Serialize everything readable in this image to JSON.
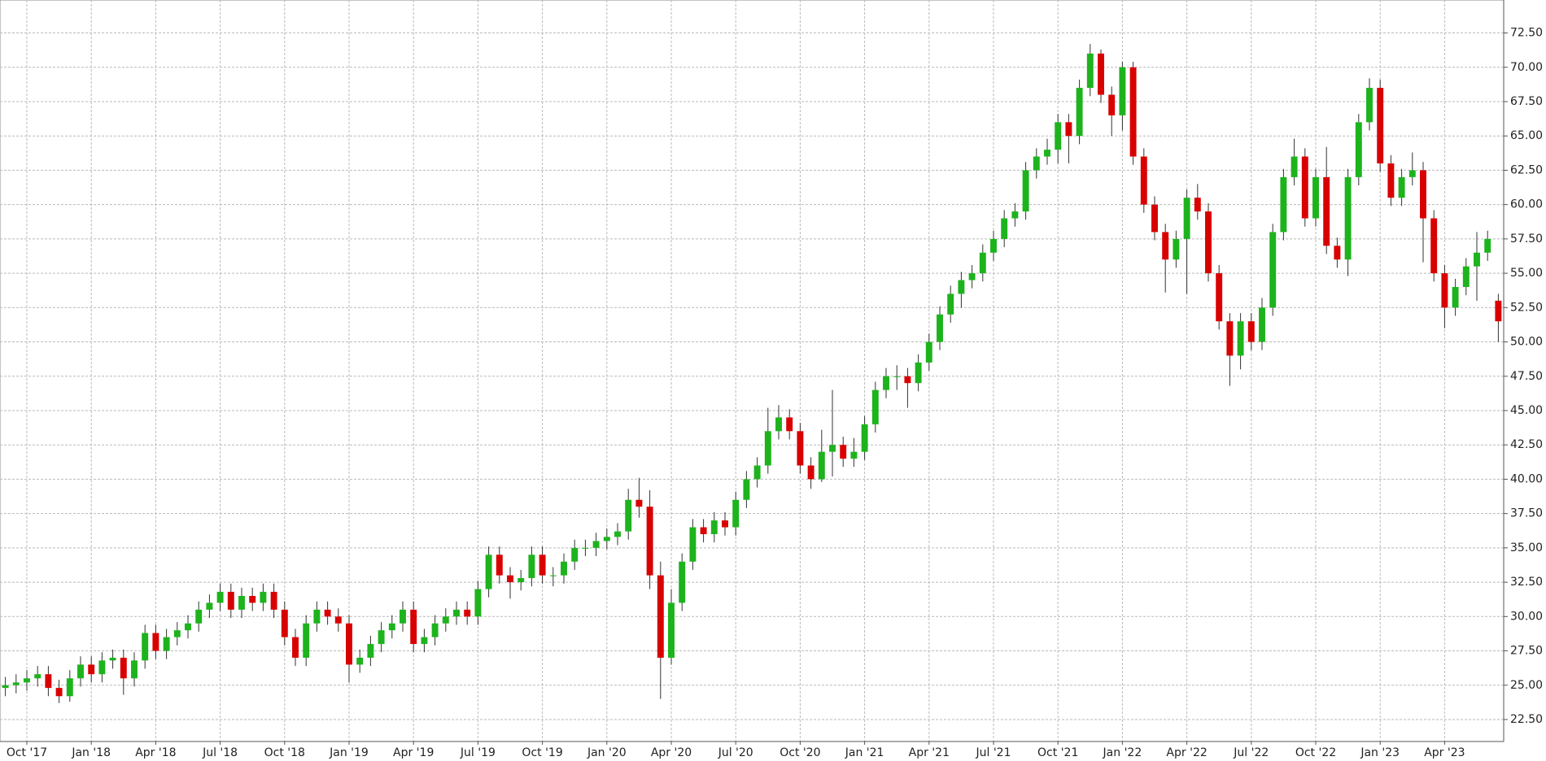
{
  "chart_data": {
    "type": "candlestick",
    "categories": [
      null,
      null,
      "Oct '17",
      null,
      null,
      null,
      null,
      null,
      "Jan '18",
      null,
      null,
      null,
      null,
      null,
      "Apr '18",
      null,
      null,
      null,
      null,
      null,
      "Jul '18",
      null,
      null,
      null,
      null,
      null,
      "Oct '18",
      null,
      null,
      null,
      null,
      null,
      "Jan '19",
      null,
      null,
      null,
      null,
      null,
      "Apr '19",
      null,
      null,
      null,
      null,
      null,
      "Jul '19",
      null,
      null,
      null,
      null,
      null,
      "Oct '19",
      null,
      null,
      null,
      null,
      null,
      "Jan '20",
      null,
      null,
      null,
      null,
      null,
      "Apr '20",
      null,
      null,
      null,
      null,
      null,
      "Jul '20",
      null,
      null,
      null,
      null,
      null,
      "Oct '20",
      null,
      null,
      null,
      null,
      null,
      "Jan '21",
      null,
      null,
      null,
      null,
      null,
      "Apr '21",
      null,
      null,
      null,
      null,
      null,
      "Jul '21",
      null,
      null,
      null,
      null,
      null,
      "Oct '21",
      null,
      null,
      null,
      null,
      null,
      "Jan '22",
      null,
      null,
      null,
      null,
      null,
      "Apr '22",
      null,
      null,
      null,
      null,
      null,
      "Jul '22",
      null,
      null,
      null,
      null,
      null,
      "Oct '22",
      null,
      null,
      null,
      null,
      null,
      "Jan '23",
      null,
      null,
      null,
      null,
      null,
      "Apr '23",
      null,
      null,
      null,
      null,
      null
    ],
    "open": [
      24.8,
      25.0,
      25.2,
      25.5,
      25.8,
      24.8,
      24.2,
      25.5,
      26.5,
      25.8,
      26.8,
      27.0,
      25.5,
      26.8,
      28.8,
      27.5,
      28.5,
      29.0,
      29.5,
      30.5,
      31.0,
      31.8,
      30.5,
      31.5,
      31.0,
      31.8,
      30.5,
      28.5,
      27.0,
      29.5,
      30.5,
      30.0,
      29.5,
      26.5,
      27.0,
      28.0,
      29.0,
      29.5,
      30.5,
      28.0,
      28.5,
      29.5,
      30.0,
      30.5,
      30.0,
      32.0,
      34.5,
      33.0,
      32.5,
      32.8,
      34.5,
      33.0,
      33.0,
      34.0,
      35.0,
      35.0,
      35.5,
      35.8,
      36.2,
      38.5,
      38.0,
      33.0,
      27.0,
      31.0,
      34.0,
      36.5,
      36.0,
      37.0,
      36.5,
      38.5,
      40.0,
      41.0,
      43.5,
      44.5,
      43.5,
      41.0,
      40.0,
      42.0,
      42.5,
      41.5,
      42.0,
      44.0,
      46.5,
      47.5,
      47.5,
      47.0,
      48.5,
      50.0,
      52.0,
      53.5,
      54.5,
      55.0,
      56.5,
      57.5,
      59.0,
      59.5,
      62.5,
      63.5,
      64.0,
      66.0,
      65.0,
      68.5,
      71.0,
      68.0,
      66.5,
      70.0,
      63.5,
      60.0,
      58.0,
      56.0,
      57.5,
      60.5,
      59.5,
      55.0,
      51.5,
      49.0,
      51.5,
      50.0,
      52.5,
      58.0,
      62.0,
      63.5,
      59.0,
      62.0,
      57.0,
      56.0,
      62.0,
      66.0,
      68.5,
      63.0,
      60.5,
      62.0,
      62.5,
      59.0,
      55.0,
      52.5,
      54.0,
      55.5,
      56.5,
      53.0
    ],
    "high": [
      25.6,
      25.8,
      26.1,
      26.4,
      26.4,
      25.4,
      26.1,
      27.1,
      27.1,
      27.4,
      27.6,
      27.6,
      27.4,
      29.4,
      29.4,
      29.1,
      29.6,
      30.1,
      31.1,
      31.6,
      32.4,
      32.4,
      32.1,
      32.1,
      32.4,
      32.4,
      31.1,
      29.1,
      30.1,
      31.1,
      31.1,
      30.6,
      30.1,
      27.6,
      28.6,
      29.6,
      30.1,
      31.1,
      31.1,
      29.1,
      30.1,
      30.6,
      31.1,
      31.1,
      32.6,
      35.1,
      35.1,
      33.6,
      33.4,
      35.1,
      35.1,
      33.6,
      34.6,
      35.6,
      35.6,
      36.1,
      36.4,
      36.8,
      39.3,
      40.1,
      39.2,
      34.0,
      32.0,
      34.6,
      37.1,
      37.1,
      37.6,
      37.6,
      39.1,
      40.6,
      41.6,
      45.2,
      45.4,
      45.1,
      44.1,
      41.6,
      43.6,
      46.5,
      43.1,
      43.0,
      44.6,
      47.1,
      48.1,
      48.3,
      48.1,
      49.1,
      50.6,
      52.6,
      54.1,
      55.1,
      55.6,
      57.1,
      58.1,
      59.6,
      60.1,
      63.1,
      64.1,
      64.8,
      66.6,
      66.6,
      69.1,
      71.7,
      71.3,
      68.6,
      70.4,
      70.4,
      64.1,
      60.6,
      58.6,
      58.1,
      61.1,
      61.5,
      60.1,
      55.6,
      52.1,
      52.1,
      52.1,
      53.2,
      58.6,
      62.6,
      64.8,
      64.1,
      62.6,
      64.2,
      57.6,
      62.6,
      66.6,
      69.2,
      69.1,
      63.6,
      62.6,
      63.8,
      63.1,
      59.6,
      55.6,
      54.6,
      56.1,
      58.0,
      58.1,
      53.5
    ],
    "low": [
      24.2,
      24.4,
      24.6,
      24.9,
      24.2,
      23.7,
      23.8,
      24.9,
      25.2,
      25.2,
      26.2,
      24.3,
      24.9,
      26.2,
      26.9,
      26.9,
      27.9,
      28.4,
      28.9,
      29.9,
      30.4,
      29.9,
      29.9,
      30.4,
      30.4,
      29.9,
      27.9,
      26.4,
      26.4,
      28.9,
      29.4,
      28.9,
      25.2,
      25.9,
      26.4,
      27.4,
      28.4,
      28.9,
      27.4,
      27.4,
      27.9,
      28.9,
      29.4,
      29.4,
      29.4,
      31.4,
      32.4,
      31.3,
      31.9,
      32.2,
      32.4,
      32.2,
      32.4,
      33.4,
      34.4,
      34.4,
      34.9,
      35.2,
      35.6,
      37.2,
      32.0,
      24.0,
      26.5,
      30.4,
      33.4,
      35.4,
      35.4,
      35.9,
      35.9,
      37.9,
      39.4,
      40.4,
      42.9,
      42.9,
      40.4,
      39.3,
      39.8,
      40.2,
      40.9,
      40.9,
      41.4,
      43.4,
      45.9,
      46.5,
      45.2,
      46.4,
      47.9,
      49.4,
      51.4,
      52.5,
      53.9,
      54.4,
      55.9,
      56.9,
      58.4,
      58.9,
      61.9,
      62.9,
      63.0,
      63.0,
      64.4,
      67.9,
      67.4,
      65.0,
      65.4,
      62.9,
      59.4,
      57.4,
      53.6,
      55.4,
      53.5,
      58.9,
      54.4,
      50.9,
      46.8,
      48.0,
      49.4,
      49.4,
      51.9,
      57.4,
      61.4,
      58.4,
      58.4,
      56.4,
      55.4,
      54.8,
      61.4,
      65.4,
      62.4,
      59.9,
      59.9,
      61.4,
      55.8,
      54.4,
      51.0,
      51.9,
      53.4,
      53.0,
      55.9,
      50.0
    ],
    "close": [
      25.0,
      25.2,
      25.5,
      25.8,
      24.8,
      24.2,
      25.5,
      26.5,
      25.8,
      26.8,
      27.0,
      25.5,
      26.8,
      28.8,
      27.5,
      28.5,
      29.0,
      29.5,
      30.5,
      31.0,
      31.8,
      30.5,
      31.5,
      31.0,
      31.8,
      30.5,
      28.5,
      27.0,
      29.5,
      30.5,
      30.0,
      29.5,
      26.5,
      27.0,
      28.0,
      29.0,
      29.5,
      30.5,
      28.0,
      28.5,
      29.5,
      30.0,
      30.5,
      30.0,
      32.0,
      34.5,
      33.0,
      32.5,
      32.8,
      34.5,
      33.0,
      33.0,
      34.0,
      35.0,
      35.0,
      35.5,
      35.8,
      36.2,
      38.5,
      38.0,
      33.0,
      27.0,
      31.0,
      34.0,
      36.5,
      36.0,
      37.0,
      36.5,
      38.5,
      40.0,
      41.0,
      43.5,
      44.5,
      43.5,
      41.0,
      40.0,
      42.0,
      42.5,
      41.5,
      42.0,
      44.0,
      46.5,
      47.5,
      47.5,
      47.0,
      48.5,
      50.0,
      52.0,
      53.5,
      54.5,
      55.0,
      56.5,
      57.5,
      59.0,
      59.5,
      62.5,
      63.5,
      64.0,
      66.0,
      65.0,
      68.5,
      71.0,
      68.0,
      66.5,
      70.0,
      63.5,
      60.0,
      58.0,
      56.0,
      57.5,
      60.5,
      59.5,
      55.0,
      51.5,
      49.0,
      51.5,
      50.0,
      52.5,
      58.0,
      62.0,
      63.5,
      59.0,
      62.0,
      57.0,
      56.0,
      62.0,
      66.0,
      68.5,
      63.0,
      60.5,
      62.0,
      62.5,
      59.0,
      55.0,
      52.5,
      54.0,
      55.5,
      56.5,
      57.5,
      51.5
    ],
    "up_color": "#1db31d",
    "down_color": "#d90000",
    "ylim": [
      20.9,
      74.9
    ],
    "yticks": [
      {
        "value": 22.5,
        "label": "22.50"
      },
      {
        "value": 25,
        "label": "25.00"
      },
      {
        "value": 27.5,
        "label": "27.50"
      },
      {
        "value": 30,
        "label": "30.00"
      },
      {
        "value": 32.5,
        "label": "32.50"
      },
      {
        "value": 35,
        "label": "35.00"
      },
      {
        "value": 37.5,
        "label": "37.50"
      },
      {
        "value": 40,
        "label": "40.00"
      },
      {
        "value": 42.5,
        "label": "42.50"
      },
      {
        "value": 45,
        "label": "45.00"
      },
      {
        "value": 47.5,
        "label": "47.50"
      },
      {
        "value": 50,
        "label": "50.00"
      },
      {
        "value": 52.5,
        "label": "52.50"
      },
      {
        "value": 55,
        "label": "55.00"
      },
      {
        "value": 57.5,
        "label": "57.50"
      },
      {
        "value": 60,
        "label": "60.00"
      },
      {
        "value": 62.5,
        "label": "62.50"
      },
      {
        "value": 65,
        "label": "65.00"
      },
      {
        "value": 67.5,
        "label": "67.50"
      },
      {
        "value": 70,
        "label": "70.00"
      },
      {
        "value": 72.5,
        "label": "72.50"
      }
    ],
    "grid": true
  }
}
